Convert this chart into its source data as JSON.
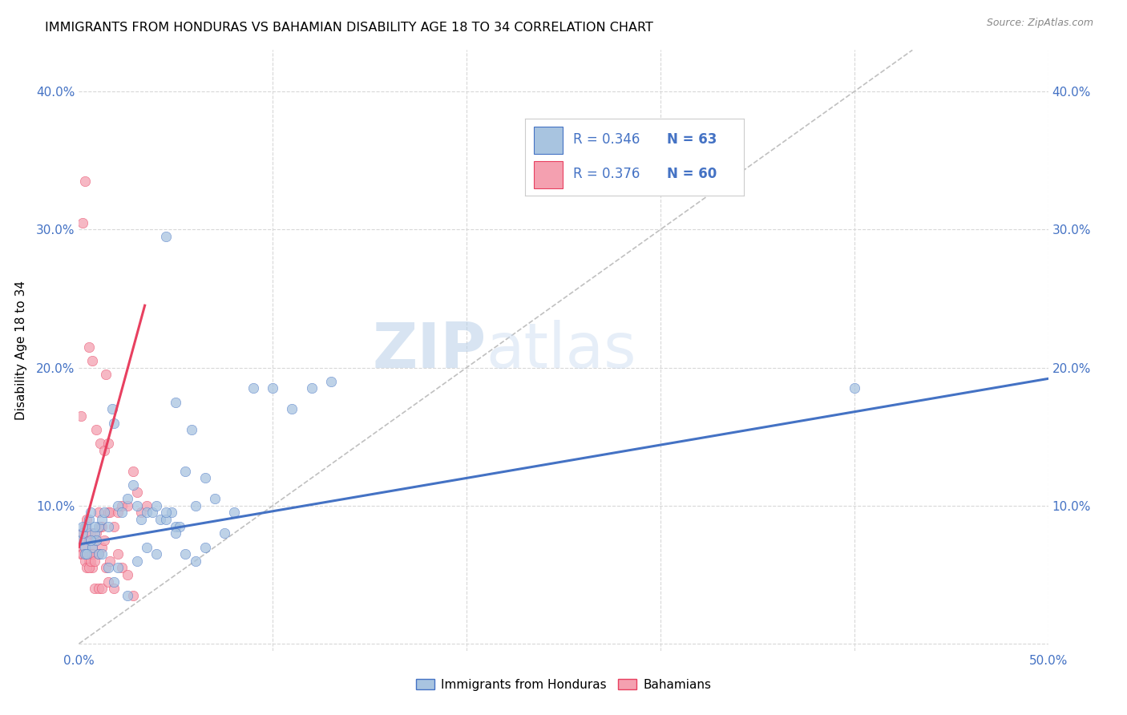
{
  "title": "IMMIGRANTS FROM HONDURAS VS BAHAMIAN DISABILITY AGE 18 TO 34 CORRELATION CHART",
  "source": "Source: ZipAtlas.com",
  "ylabel": "Disability Age 18 to 34",
  "xlim": [
    0.0,
    0.5
  ],
  "ylim": [
    -0.005,
    0.43
  ],
  "xticks": [
    0.0,
    0.1,
    0.2,
    0.3,
    0.4,
    0.5
  ],
  "xticklabels": [
    "0.0%",
    "",
    "",
    "",
    "",
    "50.0%"
  ],
  "yticks": [
    0.0,
    0.1,
    0.2,
    0.3,
    0.4
  ],
  "yticklabels": [
    "",
    "10.0%",
    "20.0%",
    "30.0%",
    "40.0%"
  ],
  "legend_r1": "R = 0.346",
  "legend_n1": "N = 63",
  "legend_r2": "R = 0.376",
  "legend_n2": "N = 60",
  "scatter1_color": "#a8c4e0",
  "scatter2_color": "#f4a0b0",
  "line1_color": "#4472c4",
  "line2_color": "#e84060",
  "diagonal_color": "#c0c0c0",
  "watermark_zip": "ZIP",
  "watermark_atlas": "atlas",
  "background_color": "#ffffff",
  "grid_color": "#d8d8d8",
  "title_color": "#000000",
  "label_color": "#4472c4",
  "blue_line_x0": 0.0,
  "blue_line_y0": 0.072,
  "blue_line_x1": 0.5,
  "blue_line_y1": 0.192,
  "pink_line_x0": 0.0,
  "pink_line_y0": 0.07,
  "pink_line_x1": 0.034,
  "pink_line_y1": 0.245,
  "scatter1_x": [
    0.001,
    0.002,
    0.003,
    0.004,
    0.005,
    0.006,
    0.007,
    0.008,
    0.009,
    0.01,
    0.012,
    0.013,
    0.015,
    0.017,
    0.018,
    0.02,
    0.022,
    0.025,
    0.028,
    0.03,
    0.032,
    0.035,
    0.038,
    0.04,
    0.042,
    0.045,
    0.048,
    0.05,
    0.052,
    0.055,
    0.058,
    0.06,
    0.065,
    0.07,
    0.075,
    0.08,
    0.002,
    0.003,
    0.004,
    0.006,
    0.008,
    0.01,
    0.012,
    0.015,
    0.018,
    0.02,
    0.025,
    0.03,
    0.035,
    0.04,
    0.045,
    0.05,
    0.055,
    0.06,
    0.065,
    0.09,
    0.1,
    0.11,
    0.12,
    0.13,
    0.4,
    0.045,
    0.05
  ],
  "scatter1_y": [
    0.075,
    0.08,
    0.07,
    0.085,
    0.09,
    0.095,
    0.07,
    0.08,
    0.075,
    0.085,
    0.09,
    0.095,
    0.085,
    0.17,
    0.16,
    0.1,
    0.095,
    0.105,
    0.115,
    0.1,
    0.09,
    0.095,
    0.095,
    0.1,
    0.09,
    0.09,
    0.095,
    0.085,
    0.085,
    0.125,
    0.155,
    0.1,
    0.12,
    0.105,
    0.08,
    0.095,
    0.085,
    0.065,
    0.065,
    0.075,
    0.085,
    0.065,
    0.065,
    0.055,
    0.045,
    0.055,
    0.035,
    0.06,
    0.07,
    0.065,
    0.095,
    0.08,
    0.065,
    0.06,
    0.07,
    0.185,
    0.185,
    0.17,
    0.185,
    0.19,
    0.185,
    0.295,
    0.175
  ],
  "scatter2_x": [
    0.001,
    0.002,
    0.003,
    0.004,
    0.005,
    0.006,
    0.007,
    0.008,
    0.009,
    0.01,
    0.011,
    0.012,
    0.013,
    0.014,
    0.015,
    0.016,
    0.018,
    0.02,
    0.022,
    0.025,
    0.028,
    0.03,
    0.032,
    0.035,
    0.001,
    0.002,
    0.003,
    0.004,
    0.005,
    0.006,
    0.007,
    0.008,
    0.01,
    0.012,
    0.015,
    0.018,
    0.02,
    0.022,
    0.025,
    0.028,
    0.001,
    0.002,
    0.003,
    0.005,
    0.007,
    0.009,
    0.011,
    0.013,
    0.015,
    0.002,
    0.003,
    0.004,
    0.005,
    0.006,
    0.007,
    0.008,
    0.01,
    0.012,
    0.014,
    0.016
  ],
  "scatter2_y": [
    0.075,
    0.08,
    0.085,
    0.09,
    0.075,
    0.08,
    0.07,
    0.075,
    0.08,
    0.095,
    0.085,
    0.07,
    0.075,
    0.195,
    0.095,
    0.095,
    0.085,
    0.095,
    0.1,
    0.1,
    0.125,
    0.11,
    0.095,
    0.1,
    0.065,
    0.07,
    0.065,
    0.065,
    0.06,
    0.065,
    0.055,
    0.04,
    0.04,
    0.04,
    0.045,
    0.04,
    0.065,
    0.055,
    0.05,
    0.035,
    0.165,
    0.305,
    0.335,
    0.215,
    0.205,
    0.155,
    0.145,
    0.14,
    0.145,
    0.065,
    0.06,
    0.055,
    0.055,
    0.06,
    0.065,
    0.06,
    0.065,
    0.085,
    0.055,
    0.06
  ]
}
